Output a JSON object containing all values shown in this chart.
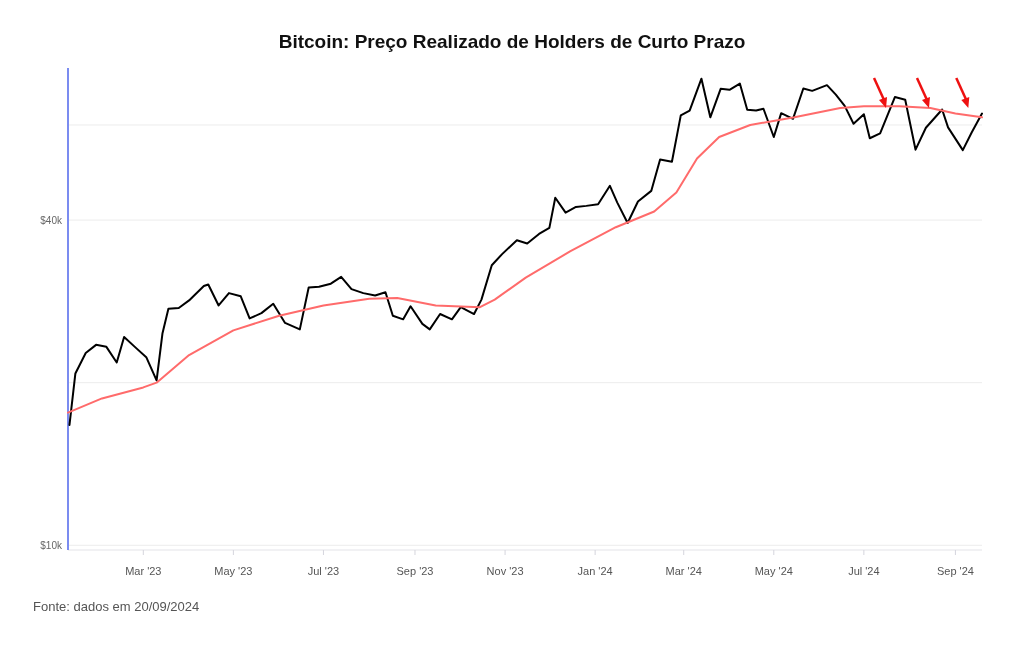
{
  "chart_data": {
    "type": "line",
    "title": "Bitcoin: Preço Realizado de Holders de Curto Prazo",
    "annotations": [
      "Fonte: dados em 20/09/2024"
    ],
    "log": true,
    "grid": "y",
    "marker": "none",
    "line_style": "solid",
    "xlim": [
      "2023-01-09",
      "2024-09-19"
    ],
    "xticks": [
      {
        "value": "2023-03-01",
        "label": "Mar '23"
      },
      {
        "value": "2023-05-01",
        "label": "May '23"
      },
      {
        "value": "2023-07-01",
        "label": "Jul '23"
      },
      {
        "value": "2023-09-01",
        "label": "Sep '23"
      },
      {
        "value": "2023-11-01",
        "label": "Nov '23"
      },
      {
        "value": "2024-01-01",
        "label": "Jan '24"
      },
      {
        "value": "2024-03-01",
        "label": "Mar '24"
      },
      {
        "value": "2024-05-01",
        "label": "May '24"
      },
      {
        "value": "2024-07-01",
        "label": "Jul '24"
      },
      {
        "value": "2024-09-01",
        "label": "Sep '24"
      }
    ],
    "ylim": [
      9800,
      76500
    ],
    "yticks": [
      {
        "value": 10000,
        "label": "$10k"
      },
      {
        "value": 20000,
        "label": null
      },
      {
        "value": 40000,
        "label": "$40k"
      },
      {
        "value": 60000,
        "label": null
      }
    ],
    "series": [
      {
        "color": "#000000",
        "x": [
          "2023-01-10",
          "2023-01-14",
          "2023-01-21",
          "2023-01-28",
          "2023-02-04",
          "2023-02-11",
          "2023-02-16",
          "2023-02-24",
          "2023-03-03",
          "2023-03-10",
          "2023-03-14",
          "2023-03-18",
          "2023-03-25",
          "2023-04-01",
          "2023-04-11",
          "2023-04-14",
          "2023-04-21",
          "2023-04-28",
          "2023-05-06",
          "2023-05-12",
          "2023-05-20",
          "2023-05-28",
          "2023-06-05",
          "2023-06-15",
          "2023-06-21",
          "2023-06-28",
          "2023-07-06",
          "2023-07-13",
          "2023-07-20",
          "2023-07-28",
          "2023-08-05",
          "2023-08-12",
          "2023-08-17",
          "2023-08-24",
          "2023-08-29",
          "2023-09-06",
          "2023-09-11",
          "2023-09-18",
          "2023-09-26",
          "2023-10-02",
          "2023-10-11",
          "2023-10-16",
          "2023-10-23",
          "2023-10-30",
          "2023-11-09",
          "2023-11-16",
          "2023-11-24",
          "2023-12-01",
          "2023-12-05",
          "2023-12-12",
          "2023-12-19",
          "2023-12-26",
          "2024-01-03",
          "2024-01-11",
          "2024-01-16",
          "2024-01-23",
          "2024-01-30",
          "2024-02-08",
          "2024-02-14",
          "2024-02-22",
          "2024-02-28",
          "2024-03-05",
          "2024-03-13",
          "2024-03-19",
          "2024-03-26",
          "2024-04-01",
          "2024-04-08",
          "2024-04-13",
          "2024-04-19",
          "2024-04-24",
          "2024-05-01",
          "2024-05-06",
          "2024-05-14",
          "2024-05-21",
          "2024-05-27",
          "2024-06-06",
          "2024-06-12",
          "2024-06-18",
          "2024-06-24",
          "2024-07-01",
          "2024-07-05",
          "2024-07-12",
          "2024-07-22",
          "2024-07-29",
          "2024-08-05",
          "2024-08-12",
          "2024-08-23",
          "2024-08-27",
          "2024-09-06",
          "2024-09-12",
          "2024-09-19"
        ],
        "values": [
          16700,
          20800,
          22700,
          23500,
          23300,
          21800,
          24300,
          23200,
          22300,
          20200,
          24700,
          27400,
          27500,
          28400,
          30200,
          30400,
          27800,
          29300,
          28900,
          26300,
          26900,
          28000,
          25800,
          25100,
          30000,
          30100,
          30500,
          31400,
          29800,
          29300,
          29000,
          29400,
          26600,
          26200,
          27700,
          25700,
          25100,
          26800,
          26200,
          27600,
          26800,
          28500,
          33000,
          34600,
          36700,
          36200,
          37700,
          38700,
          44000,
          41300,
          42300,
          42500,
          42800,
          46300,
          43100,
          39500,
          43300,
          45300,
          51800,
          51300,
          62500,
          63800,
          73100,
          62000,
          70000,
          69700,
          71600,
          64000,
          63800,
          64300,
          57000,
          63100,
          61600,
          70100,
          69400,
          71100,
          68300,
          65100,
          60300,
          62800,
          56700,
          57900,
          67600,
          66800,
          54000,
          59300,
          64100,
          59400,
          53900,
          58100,
          63000
        ]
      },
      {
        "color": "#ff6b6b",
        "x": [
          "2023-01-09",
          "2023-02-01",
          "2023-03-01",
          "2023-03-10",
          "2023-04-01",
          "2023-05-01",
          "2023-06-01",
          "2023-07-01",
          "2023-08-01",
          "2023-08-20",
          "2023-09-15",
          "2023-10-15",
          "2023-10-25",
          "2023-11-15",
          "2023-12-15",
          "2024-01-15",
          "2024-02-10",
          "2024-02-25",
          "2024-03-10",
          "2024-03-25",
          "2024-04-15",
          "2024-05-15",
          "2024-06-15",
          "2024-07-01",
          "2024-07-25",
          "2024-08-15",
          "2024-09-01",
          "2024-09-19"
        ],
        "values": [
          17600,
          18700,
          19600,
          20000,
          22500,
          25000,
          26600,
          27800,
          28600,
          28700,
          27800,
          27600,
          28500,
          31300,
          35000,
          38800,
          41500,
          45000,
          52000,
          57000,
          60000,
          62000,
          64500,
          65000,
          65000,
          64500,
          63000,
          62000
        ]
      }
    ]
  }
}
